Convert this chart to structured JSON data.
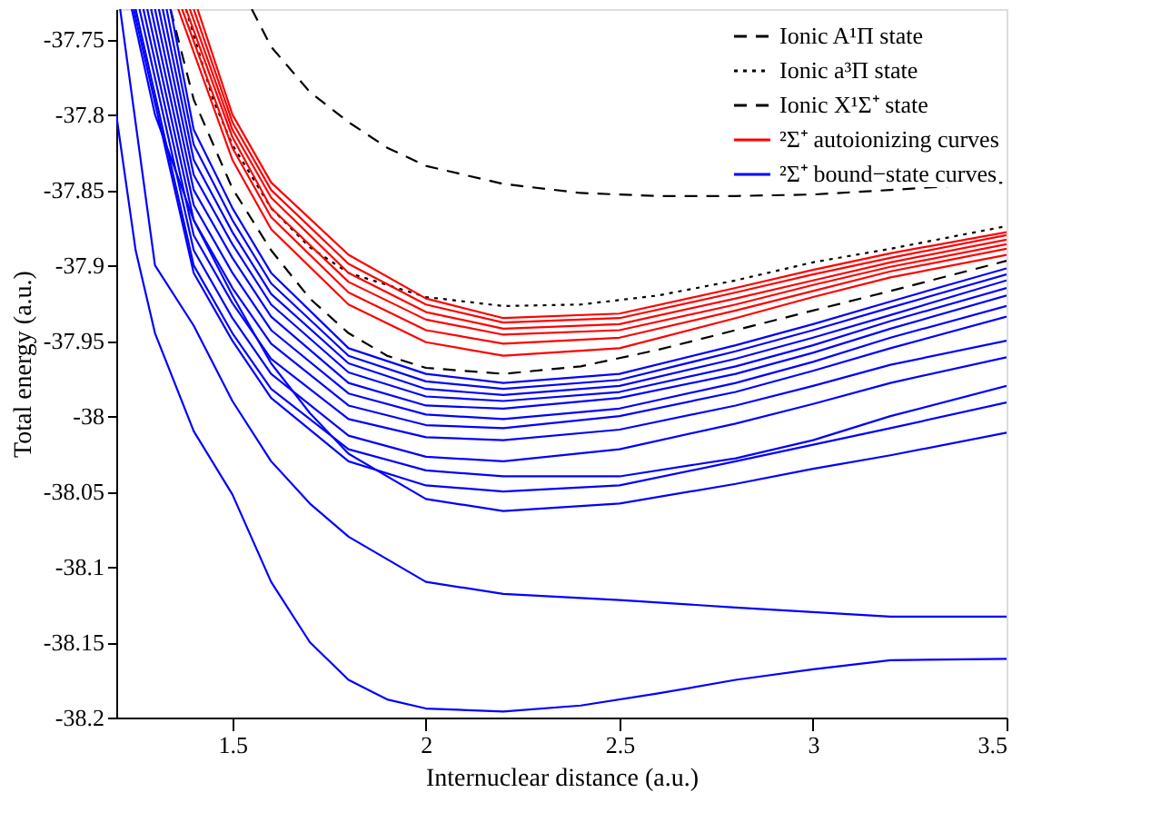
{
  "chart_data": {
    "type": "line",
    "xlabel": "Internuclear distance (a.u.)",
    "ylabel": "Total energy (a.u.)",
    "xlim": [
      1.2,
      3.5
    ],
    "ylim": [
      -38.2,
      -37.73
    ],
    "xticks": [
      1.5,
      2,
      2.5,
      3,
      3.5
    ],
    "yticks": [
      -38.2,
      -38.15,
      -38.1,
      -38.05,
      -38,
      -37.95,
      -37.9,
      -37.85,
      -37.8,
      -37.75
    ],
    "grid": false,
    "legend": "top right",
    "series": [
      {
        "name": "Ionic A¹Π state",
        "color": "#000000",
        "line_style": "dashed",
        "x": [
          1.55,
          1.6,
          1.7,
          1.8,
          1.9,
          2.0,
          2.2,
          2.4,
          2.6,
          2.8,
          3.0,
          3.2,
          3.5
        ],
        "values": [
          -37.73,
          -37.755,
          -37.785,
          -37.805,
          -37.822,
          -37.834,
          -37.846,
          -37.852,
          -37.854,
          -37.854,
          -37.853,
          -37.85,
          -37.845
        ]
      },
      {
        "name": "Ionic a³Π state",
        "color": "#000000",
        "line_style": "dotted",
        "x": [
          1.38,
          1.45,
          1.5,
          1.6,
          1.7,
          1.8,
          2.0,
          2.2,
          2.4,
          2.6,
          2.8,
          3.0,
          3.2,
          3.5
        ],
        "values": [
          -37.73,
          -37.79,
          -37.82,
          -37.862,
          -37.888,
          -37.905,
          -37.921,
          -37.927,
          -37.926,
          -37.92,
          -37.91,
          -37.898,
          -37.889,
          -37.874
        ]
      },
      {
        "name": "Ionic X¹Σ⁺ state",
        "color": "#000000",
        "line_style": "dashed",
        "x": [
          1.34,
          1.4,
          1.5,
          1.6,
          1.7,
          1.8,
          1.9,
          2.0,
          2.2,
          2.4,
          2.6,
          2.8,
          3.0,
          3.2,
          3.5
        ],
        "values": [
          -37.73,
          -37.79,
          -37.849,
          -37.89,
          -37.922,
          -37.945,
          -37.96,
          -37.968,
          -37.972,
          -37.967,
          -37.956,
          -37.943,
          -37.93,
          -37.917,
          -37.897
        ]
      },
      {
        "name": "²Σ⁺ autoionizing curves",
        "color": "#ff0000",
        "line_style": "solid",
        "x": [
          1.41,
          1.5,
          1.6,
          1.8,
          2.0,
          2.2,
          2.5,
          2.8,
          3.0,
          3.2,
          3.5
        ],
        "values": [
          -37.73,
          -37.8,
          -37.845,
          -37.893,
          -37.922,
          -37.935,
          -37.932,
          -37.915,
          -37.903,
          -37.892,
          -37.878
        ]
      },
      {
        "color": "#ff0000",
        "line_style": "solid",
        "x": [
          1.4,
          1.5,
          1.6,
          1.8,
          2.0,
          2.2,
          2.5,
          2.8,
          3.0,
          3.2,
          3.5
        ],
        "values": [
          -37.73,
          -37.805,
          -37.85,
          -37.899,
          -37.926,
          -37.938,
          -37.935,
          -37.918,
          -37.906,
          -37.895,
          -37.88
        ]
      },
      {
        "color": "#ff0000",
        "line_style": "solid",
        "x": [
          1.39,
          1.5,
          1.6,
          1.8,
          2.0,
          2.2,
          2.5,
          2.8,
          3.0,
          3.2,
          3.5
        ],
        "values": [
          -37.73,
          -37.81,
          -37.855,
          -37.905,
          -37.931,
          -37.942,
          -37.939,
          -37.922,
          -37.91,
          -37.898,
          -37.883
        ]
      },
      {
        "color": "#ff0000",
        "line_style": "solid",
        "x": [
          1.38,
          1.5,
          1.6,
          1.8,
          2.0,
          2.2,
          2.5,
          2.8,
          3.0,
          3.2,
          3.5
        ],
        "values": [
          -37.73,
          -37.815,
          -37.862,
          -37.911,
          -37.936,
          -37.946,
          -37.943,
          -37.926,
          -37.913,
          -37.901,
          -37.886
        ]
      },
      {
        "color": "#ff0000",
        "line_style": "solid",
        "x": [
          1.37,
          1.5,
          1.6,
          1.8,
          2.0,
          2.2,
          2.5,
          2.8,
          3.0,
          3.2,
          3.5
        ],
        "values": [
          -37.73,
          -37.822,
          -37.868,
          -37.918,
          -37.943,
          -37.952,
          -37.948,
          -37.93,
          -37.917,
          -37.904,
          -37.889
        ]
      },
      {
        "color": "#ff0000",
        "line_style": "solid",
        "x": [
          1.36,
          1.5,
          1.6,
          1.8,
          2.0,
          2.2,
          2.5,
          2.8,
          3.0,
          3.2,
          3.5
        ],
        "values": [
          -37.73,
          -37.83,
          -37.876,
          -37.926,
          -37.951,
          -37.96,
          -37.955,
          -37.935,
          -37.921,
          -37.908,
          -37.893
        ]
      },
      {
        "name": "²Σ⁺ bound−state curves",
        "color": "#0000ff",
        "line_style": "solid",
        "x": [
          1.34,
          1.4,
          1.5,
          1.6,
          1.8,
          2.0,
          2.2,
          2.5,
          2.8,
          3.0,
          3.2,
          3.5
        ],
        "values": [
          -37.73,
          -37.81,
          -37.862,
          -37.905,
          -37.955,
          -37.972,
          -37.978,
          -37.972,
          -37.953,
          -37.939,
          -37.924,
          -37.902
        ]
      },
      {
        "color": "#0000ff",
        "line_style": "solid",
        "x": [
          1.33,
          1.4,
          1.5,
          1.6,
          1.8,
          2.0,
          2.2,
          2.5,
          2.8,
          3.0,
          3.2,
          3.5
        ],
        "values": [
          -37.73,
          -37.82,
          -37.87,
          -37.912,
          -37.96,
          -37.977,
          -37.982,
          -37.976,
          -37.957,
          -37.943,
          -37.928,
          -37.906
        ]
      },
      {
        "color": "#0000ff",
        "line_style": "solid",
        "x": [
          1.32,
          1.4,
          1.5,
          1.6,
          1.8,
          2.0,
          2.2,
          2.5,
          2.8,
          3.0,
          3.2,
          3.5
        ],
        "values": [
          -37.73,
          -37.83,
          -37.878,
          -37.919,
          -37.965,
          -37.982,
          -37.986,
          -37.98,
          -37.962,
          -37.948,
          -37.933,
          -37.91
        ]
      },
      {
        "color": "#0000ff",
        "line_style": "solid",
        "x": [
          1.31,
          1.4,
          1.5,
          1.6,
          1.8,
          2.0,
          2.2,
          2.5,
          2.8,
          3.0,
          3.2,
          3.5
        ],
        "values": [
          -37.73,
          -37.84,
          -37.886,
          -37.926,
          -37.971,
          -37.987,
          -37.99,
          -37.984,
          -37.967,
          -37.953,
          -37.937,
          -37.915
        ]
      },
      {
        "color": "#0000ff",
        "line_style": "solid",
        "x": [
          1.3,
          1.4,
          1.5,
          1.6,
          1.8,
          2.0,
          2.2,
          2.5,
          2.8,
          3.0,
          3.2,
          3.5
        ],
        "values": [
          -37.73,
          -37.85,
          -37.895,
          -37.934,
          -37.978,
          -37.993,
          -37.995,
          -37.988,
          -37.972,
          -37.958,
          -37.942,
          -37.92
        ]
      },
      {
        "color": "#0000ff",
        "line_style": "solid",
        "x": [
          1.29,
          1.4,
          1.5,
          1.6,
          1.8,
          2.0,
          2.2,
          2.5,
          2.8,
          3.0,
          3.2,
          3.5
        ],
        "values": [
          -37.73,
          -37.86,
          -37.905,
          -37.943,
          -37.985,
          -37.999,
          -38.002,
          -37.995,
          -37.978,
          -37.964,
          -37.948,
          -37.927
        ]
      },
      {
        "color": "#0000ff",
        "line_style": "solid",
        "x": [
          1.28,
          1.4,
          1.5,
          1.6,
          1.8,
          2.0,
          2.2,
          2.5,
          2.8,
          3.0,
          3.2,
          3.5
        ],
        "values": [
          -37.73,
          -37.87,
          -37.915,
          -37.952,
          -37.993,
          -38.006,
          -38.008,
          -38.0,
          -37.984,
          -37.97,
          -37.955,
          -37.934
        ]
      },
      {
        "color": "#0000ff",
        "line_style": "solid",
        "x": [
          1.27,
          1.4,
          1.5,
          1.6,
          1.8,
          2.0,
          2.2,
          2.5,
          2.8,
          3.0,
          3.2,
          3.5
        ],
        "values": [
          -37.73,
          -37.88,
          -37.925,
          -37.962,
          -38.002,
          -38.014,
          -38.016,
          -38.009,
          -37.993,
          -37.98,
          -37.966,
          -37.95
        ]
      },
      {
        "color": "#0000ff",
        "line_style": "solid",
        "x": [
          1.26,
          1.4,
          1.5,
          1.6,
          1.8,
          2.0,
          2.2,
          2.5,
          2.8,
          3.0,
          3.2,
          3.5
        ],
        "values": [
          -37.73,
          -37.89,
          -37.935,
          -37.972,
          -38.013,
          -38.027,
          -38.03,
          -38.022,
          -38.005,
          -37.992,
          -37.978,
          -37.961
        ]
      },
      {
        "color": "#0000ff",
        "line_style": "solid",
        "x": [
          1.25,
          1.4,
          1.5,
          1.6,
          1.8,
          2.0,
          2.2,
          2.5,
          2.8,
          3.0,
          3.2,
          3.5
        ],
        "values": [
          -37.73,
          -37.9,
          -37.945,
          -37.982,
          -38.022,
          -38.036,
          -38.04,
          -38.04,
          -38.028,
          -38.016,
          -38.0,
          -37.98
        ]
      },
      {
        "color": "#0000ff",
        "line_style": "solid",
        "x": [
          1.245,
          1.4,
          1.5,
          1.6,
          1.8,
          2.0,
          2.2,
          2.5,
          2.8,
          3.0,
          3.2,
          3.5
        ],
        "values": [
          -37.73,
          -37.905,
          -37.95,
          -37.988,
          -38.03,
          -38.046,
          -38.05,
          -38.046,
          -38.03,
          -38.019,
          -38.008,
          -37.991
        ]
      },
      {
        "color": "#0000ff",
        "line_style": "solid",
        "x": [
          1.24,
          1.3,
          1.4,
          1.5,
          1.6,
          1.7,
          1.8,
          2.0,
          2.2,
          2.5,
          2.8,
          3.0,
          3.2,
          3.5
        ],
        "values": [
          -37.73,
          -37.8,
          -37.87,
          -37.92,
          -37.965,
          -37.998,
          -38.025,
          -38.055,
          -38.063,
          -38.058,
          -38.045,
          -38.035,
          -38.026,
          -38.011
        ]
      },
      {
        "color": "#0000ff",
        "line_style": "solid",
        "x": [
          1.21,
          1.3,
          1.4,
          1.5,
          1.6,
          1.7,
          1.8,
          2.0,
          2.2,
          2.5,
          2.8,
          3.0,
          3.2,
          3.5
        ],
        "values": [
          -37.73,
          -37.9,
          -37.94,
          -37.99,
          -38.03,
          -38.058,
          -38.08,
          -38.11,
          -38.118,
          -38.122,
          -38.127,
          -38.13,
          -38.133,
          -38.133
        ]
      },
      {
        "color": "#0000ff",
        "line_style": "solid",
        "x": [
          1.2,
          1.25,
          1.3,
          1.4,
          1.5,
          1.6,
          1.7,
          1.8,
          1.9,
          2.0,
          2.2,
          2.4,
          2.6,
          2.8,
          3.0,
          3.2,
          3.5
        ],
        "values": [
          -37.8,
          -37.89,
          -37.945,
          -38.01,
          -38.052,
          -38.11,
          -38.15,
          -38.175,
          -38.188,
          -38.194,
          -38.196,
          -38.192,
          -38.184,
          -38.175,
          -38.168,
          -38.162,
          -38.161
        ]
      }
    ]
  }
}
